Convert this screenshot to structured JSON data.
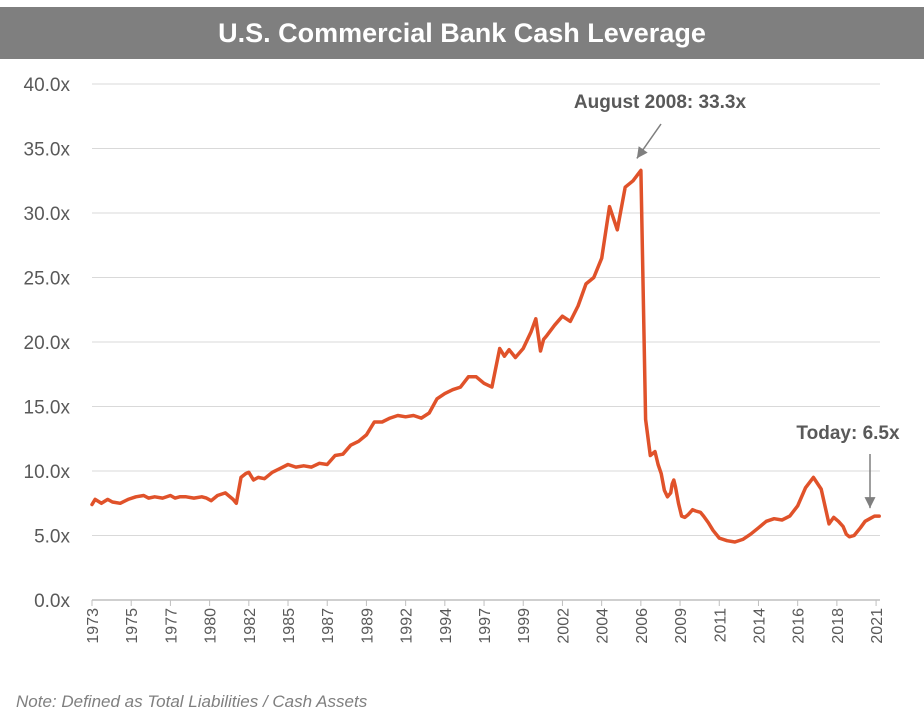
{
  "chart_data": {
    "type": "line",
    "title": "U.S. Commercial Bank Cash Leverage",
    "note": "Note: Defined as Total Liabilities / Cash Assets",
    "ylim": [
      0,
      40
    ],
    "ytick_labels": [
      "0.0x",
      "5.0x",
      "10.0x",
      "15.0x",
      "20.0x",
      "25.0x",
      "30.0x",
      "35.0x",
      "40.0x"
    ],
    "ytick_values": [
      0,
      5,
      10,
      15,
      20,
      25,
      30,
      35,
      40
    ],
    "xlim": [
      1973.0,
      2023.25
    ],
    "xtick_labels": [
      "1973",
      "1975",
      "1977",
      "1980",
      "1982",
      "1985",
      "1987",
      "1989",
      "1992",
      "1994",
      "1997",
      "1999",
      "2002",
      "2004",
      "2006",
      "2009",
      "2011",
      "2014",
      "2016",
      "2018",
      "2021"
    ],
    "xtick_values": [
      1973.0,
      1975.5,
      1978.0,
      1980.5,
      1983.0,
      1985.5,
      1988.0,
      1990.5,
      1993.0,
      1995.5,
      1998.0,
      2000.5,
      2003.0,
      2005.5,
      2008.0,
      2010.5,
      2013.0,
      2015.5,
      2018.0,
      2020.5,
      2023.0
    ],
    "line_color": "#e0522a",
    "series": [
      {
        "name": "Cash Leverage",
        "x": [
          1973.0,
          1973.2,
          1973.6,
          1974.0,
          1974.3,
          1974.8,
          1975.3,
          1975.8,
          1976.3,
          1976.6,
          1977.0,
          1977.5,
          1978.0,
          1978.3,
          1978.6,
          1979.0,
          1979.5,
          1980.0,
          1980.3,
          1980.6,
          1981.0,
          1981.5,
          1982.0,
          1982.2,
          1982.5,
          1982.8,
          1983.0,
          1983.3,
          1983.6,
          1984.0,
          1984.5,
          1985.0,
          1985.5,
          1986.0,
          1986.5,
          1987.0,
          1987.5,
          1988.0,
          1988.5,
          1989.0,
          1989.5,
          1990.0,
          1990.5,
          1991.0,
          1991.5,
          1992.0,
          1992.5,
          1993.0,
          1993.5,
          1994.0,
          1994.5,
          1995.0,
          1995.5,
          1996.0,
          1996.5,
          1997.0,
          1997.5,
          1998.0,
          1998.5,
          1999.0,
          1999.3,
          1999.6,
          2000.0,
          2000.5,
          2001.0,
          2001.3,
          2001.6,
          2001.8,
          2002.0,
          2002.5,
          2003.0,
          2003.5,
          2004.0,
          2004.5,
          2005.0,
          2005.5,
          2006.0,
          2006.5,
          2007.0,
          2007.5,
          2008.0,
          2008.3,
          2008.6,
          2008.9,
          2009.1,
          2009.3,
          2009.5,
          2009.7,
          2009.9,
          2010.0,
          2010.1,
          2010.2,
          2010.4,
          2010.6,
          2010.8,
          2011.0,
          2011.3,
          2011.5,
          2011.8,
          2012.0,
          2012.3,
          2012.6,
          2013.0,
          2013.5,
          2014.0,
          2014.5,
          2015.0,
          2015.5,
          2016.0,
          2016.5,
          2017.0,
          2017.5,
          2018.0,
          2018.5,
          2019.0,
          2019.5,
          2020.0,
          2020.3,
          2020.6,
          2020.9,
          2021.1,
          2021.3,
          2021.6,
          2022.0,
          2022.3,
          2022.6,
          2022.9,
          2023.2
        ],
        "values": [
          7.4,
          7.8,
          7.5,
          7.8,
          7.6,
          7.5,
          7.8,
          8.0,
          8.1,
          7.9,
          8.0,
          7.9,
          8.1,
          7.9,
          8.0,
          8.0,
          7.9,
          8.0,
          7.9,
          7.7,
          8.1,
          8.3,
          7.8,
          7.5,
          9.5,
          9.8,
          9.9,
          9.3,
          9.5,
          9.4,
          9.9,
          10.2,
          10.5,
          10.3,
          10.4,
          10.3,
          10.6,
          10.5,
          11.2,
          11.3,
          12.0,
          12.3,
          12.8,
          13.8,
          13.8,
          14.1,
          14.3,
          14.2,
          14.3,
          14.1,
          14.5,
          15.6,
          16.0,
          16.3,
          16.5,
          17.3,
          17.3,
          16.8,
          16.5,
          19.5,
          18.9,
          19.4,
          18.8,
          19.5,
          20.8,
          21.8,
          19.3,
          20.2,
          20.5,
          21.3,
          22.0,
          21.6,
          22.8,
          24.5,
          25.0,
          26.5,
          30.5,
          28.7,
          32.0,
          32.5,
          33.3,
          14.0,
          11.2,
          11.5,
          10.5,
          9.8,
          8.5,
          8.0,
          8.3,
          9.0,
          9.3,
          8.8,
          7.5,
          6.5,
          6.4,
          6.6,
          7.0,
          6.9,
          6.8,
          6.5,
          6.0,
          5.4,
          4.8,
          4.6,
          4.5,
          4.7,
          5.1,
          5.6,
          6.1,
          6.3,
          6.2,
          6.5,
          7.3,
          8.7,
          9.5,
          8.6,
          5.9,
          6.4,
          6.1,
          5.7,
          5.1,
          4.9,
          5.0,
          5.6,
          6.1,
          6.3,
          6.5,
          6.5
        ]
      }
    ],
    "annotations": [
      {
        "text": "August 2008: 33.3x",
        "x": 2008.0,
        "y": 33.3
      },
      {
        "text": "Today: 6.5x",
        "x": 2023.0,
        "y": 6.5
      }
    ]
  }
}
